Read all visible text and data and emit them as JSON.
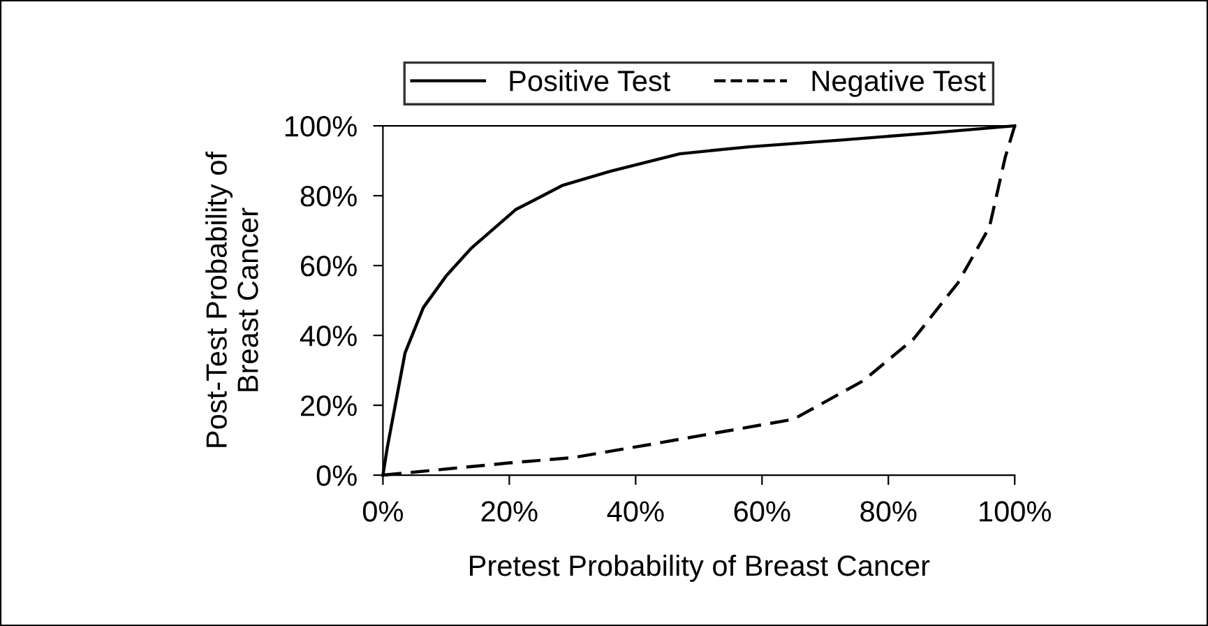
{
  "chart_data": {
    "type": "line",
    "xlabel": "Pretest Probability of Breast Cancer",
    "ylabel": "Post-Test Probability of\nBreast Cancer",
    "series": [
      {
        "name": "Positive Test",
        "color": "#000000",
        "line_style": "solid",
        "x": [
          0,
          0.7,
          3.5,
          6.4,
          10,
          14,
          21,
          28.5,
          36,
          47,
          58,
          73,
          87,
          100
        ],
        "values": [
          0,
          8,
          35,
          48,
          57,
          65,
          76,
          83,
          87,
          92,
          94,
          96,
          98,
          100
        ]
      },
      {
        "name": "Negative Test",
        "color": "#000000",
        "line_style": "dashed",
        "x": [
          0,
          20,
          30,
          43,
          65,
          76,
          84,
          91,
          96,
          98.5,
          100
        ],
        "values": [
          0,
          3.5,
          5,
          9,
          16,
          27,
          39,
          55,
          71,
          91,
          100
        ]
      }
    ],
    "xlim": [
      0,
      100
    ],
    "ylim": [
      0,
      100
    ],
    "xticks": [
      {
        "value": 0,
        "label": "0%"
      },
      {
        "value": 20,
        "label": "20%"
      },
      {
        "value": 40,
        "label": "40%"
      },
      {
        "value": 60,
        "label": "60%"
      },
      {
        "value": 80,
        "label": "80%"
      },
      {
        "value": 100,
        "label": "100%"
      }
    ],
    "yticks": [
      {
        "value": 0,
        "label": "0%"
      },
      {
        "value": 20,
        "label": "20%"
      },
      {
        "value": 40,
        "label": "40%"
      },
      {
        "value": 60,
        "label": "60%"
      },
      {
        "value": 80,
        "label": "80%"
      },
      {
        "value": 100,
        "label": "100%"
      }
    ],
    "grid": false,
    "legend": "top",
    "marker": "none"
  }
}
